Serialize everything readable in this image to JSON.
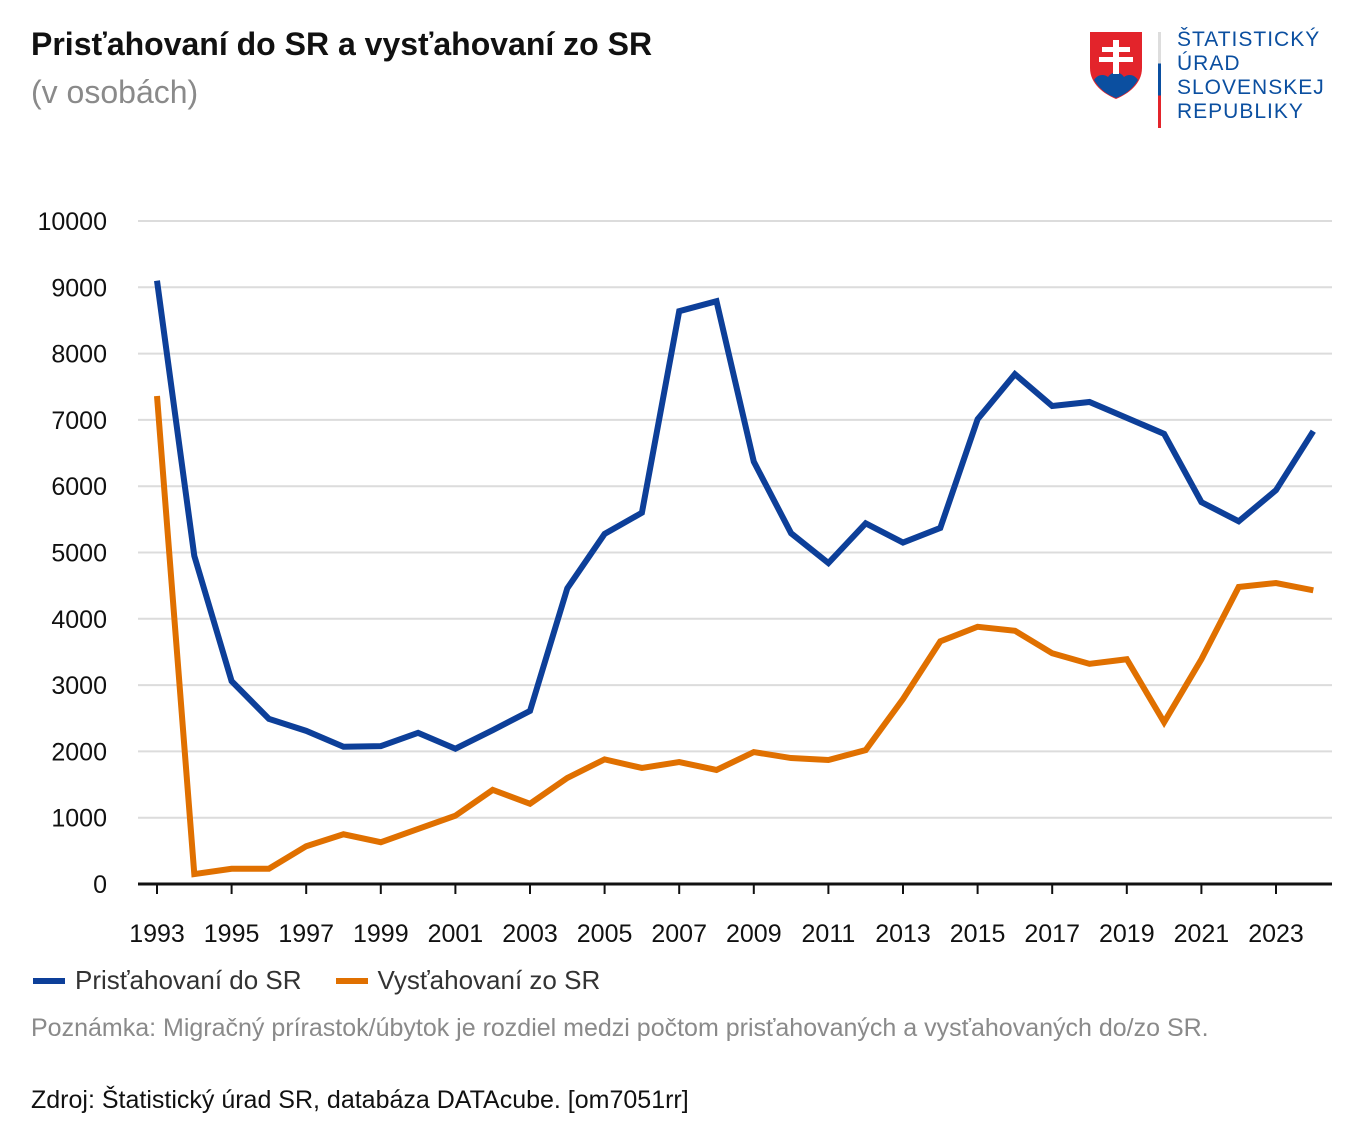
{
  "header": {
    "title": "Prisťahovaní do SR a vysťahovaní zo SR",
    "subtitle": "(v osobách)"
  },
  "logo": {
    "lines": [
      "ŠTATISTICKÝ",
      "ÚRAD",
      "SLOVENSKEJ",
      "REPUBLIKY"
    ]
  },
  "footer": {
    "note": "Poznámka: Migračný prírastok/úbytok je rozdiel medzi počtom prisťahovaných a vysťahovaných do/zo SR.",
    "source": "Zdroj: Štatistický úrad SR, databáza DATAcube. [om7051rr]"
  },
  "chart_data": {
    "type": "line",
    "title": "Prisťahovaní do SR a vysťahovaní zo SR",
    "subtitle": "(v osobách)",
    "xlabel": "",
    "ylabel": "",
    "ylim": [
      0,
      10000
    ],
    "yticks": [
      0,
      1000,
      2000,
      3000,
      4000,
      5000,
      6000,
      7000,
      8000,
      9000,
      10000
    ],
    "xtick_labels": [
      "1993",
      "1995",
      "1997",
      "1999",
      "2001",
      "2003",
      "2005",
      "2007",
      "2009",
      "2011",
      "2013",
      "2015",
      "2017",
      "2019",
      "2021",
      "2023"
    ],
    "x": [
      1993,
      1994,
      1995,
      1996,
      1997,
      1998,
      1999,
      2000,
      2001,
      2002,
      2003,
      2004,
      2005,
      2006,
      2007,
      2008,
      2009,
      2010,
      2011,
      2012,
      2013,
      2014,
      2015,
      2016,
      2017,
      2018,
      2019,
      2020,
      2021,
      2022,
      2023,
      2024
    ],
    "grid": true,
    "legend_position": "bottom-left",
    "series": [
      {
        "name": "Prisťahovaní do SR",
        "color": "#0d3f99",
        "values": [
          9100,
          4950,
          3060,
          2490,
          2310,
          2070,
          2080,
          2280,
          2040,
          2320,
          2610,
          4460,
          5280,
          5600,
          8640,
          8790,
          6370,
          5290,
          4840,
          5440,
          5150,
          5370,
          7010,
          7690,
          7210,
          7270,
          7030,
          6790,
          5760,
          5470,
          5940,
          6830
        ]
      },
      {
        "name": "Vysťahovaní zo SR",
        "color": "#e07000",
        "values": [
          7360,
          150,
          230,
          230,
          570,
          750,
          630,
          830,
          1030,
          1420,
          1210,
          1600,
          1880,
          1750,
          1840,
          1720,
          1990,
          1900,
          1870,
          2020,
          2790,
          3660,
          3880,
          3820,
          3480,
          3320,
          3390,
          2440,
          3390,
          4480,
          4540,
          4430
        ]
      }
    ]
  }
}
